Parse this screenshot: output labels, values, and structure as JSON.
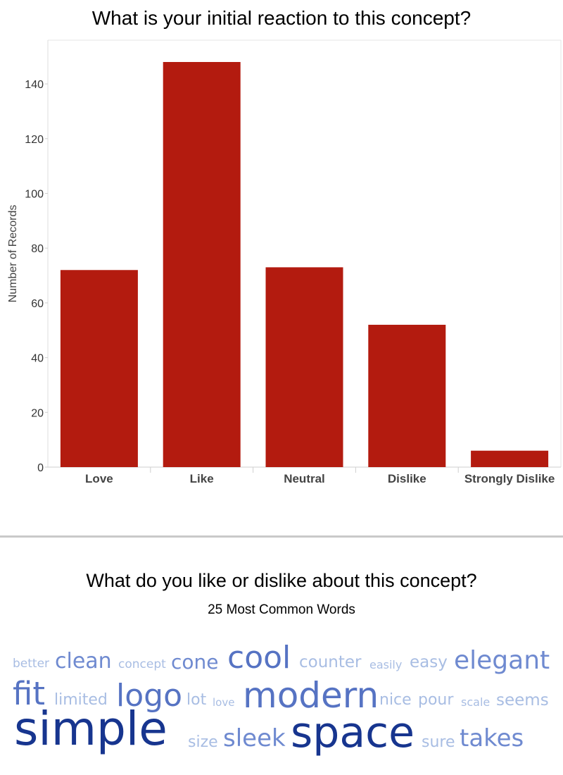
{
  "chart_data": {
    "type": "bar",
    "title": "What is your initial reaction to this concept?",
    "ylabel": "Number of Records",
    "xlabel": "",
    "categories": [
      "Love",
      "Like",
      "Neutral",
      "Dislike",
      "Strongly Dislike"
    ],
    "values": [
      72,
      148,
      73,
      52,
      6
    ],
    "ylim": [
      0,
      150
    ],
    "yticks": [
      0,
      20,
      40,
      60,
      80,
      100,
      120,
      140
    ],
    "bar_color": "#b31b0f",
    "grid": false
  },
  "word_cloud": {
    "title": "What do you like or dislike about this concept?",
    "subtitle": "25 Most Common Words",
    "colors": {
      "light": "#a8bde3",
      "medium": "#6f8ad0",
      "dark": "#5673c3",
      "darkest": "#17358f"
    },
    "rows": [
      [
        {
          "text": "better",
          "tone": "light"
        },
        {
          "text": "clean",
          "tone": "medium"
        },
        {
          "text": "concept",
          "tone": "light"
        },
        {
          "text": "cone",
          "tone": "medium"
        },
        {
          "text": "cool",
          "tone": "dark"
        },
        {
          "text": "counter",
          "tone": "light"
        },
        {
          "text": "easily",
          "tone": "light"
        },
        {
          "text": "easy",
          "tone": "light"
        },
        {
          "text": "elegant",
          "tone": "medium"
        }
      ],
      [
        {
          "text": "fit",
          "tone": "dark"
        },
        {
          "text": "limited",
          "tone": "light"
        },
        {
          "text": "logo",
          "tone": "dark"
        },
        {
          "text": "lot",
          "tone": "light"
        },
        {
          "text": "love",
          "tone": "light"
        },
        {
          "text": "modern",
          "tone": "dark"
        },
        {
          "text": "nice",
          "tone": "light"
        },
        {
          "text": "pour",
          "tone": "light"
        },
        {
          "text": "scale",
          "tone": "light"
        },
        {
          "text": "seems",
          "tone": "light"
        }
      ],
      [
        {
          "text": "simple",
          "tone": "darkest"
        },
        {
          "text": "size",
          "tone": "light"
        },
        {
          "text": "sleek",
          "tone": "medium"
        },
        {
          "text": "space",
          "tone": "darkest"
        },
        {
          "text": "sure",
          "tone": "light"
        },
        {
          "text": "takes",
          "tone": "medium"
        }
      ]
    ]
  }
}
